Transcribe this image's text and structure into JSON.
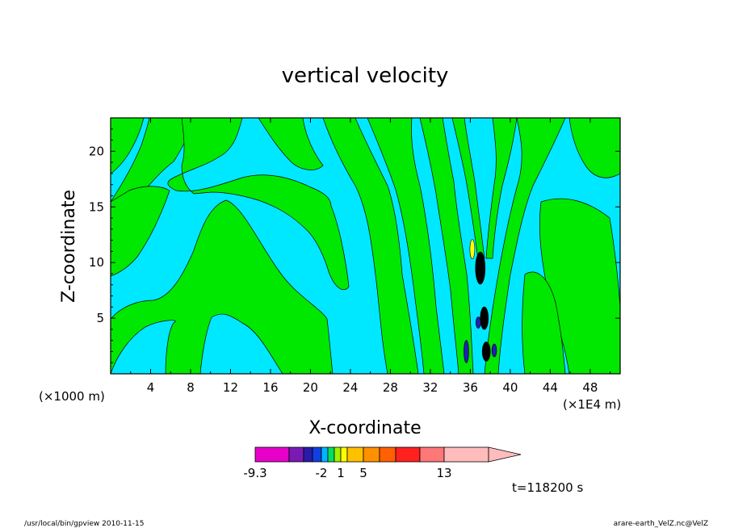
{
  "chart_data": {
    "type": "heatmap",
    "title": "vertical velocity",
    "xlabel": "X-coordinate",
    "ylabel": "Z-coordinate",
    "x_unit_left": "(×1000 m)",
    "x_unit_right": "(×1E4 m)",
    "xlim": [
      0,
      51
    ],
    "ylim": [
      0,
      23
    ],
    "xticks": [
      4,
      8,
      12,
      16,
      20,
      24,
      28,
      32,
      36,
      40,
      44,
      48
    ],
    "yticks": [
      5,
      10,
      15,
      20
    ],
    "time_label": "t=118200 s",
    "colorbar": {
      "tick_labels": [
        "-9.3",
        "-2",
        "1",
        "5",
        "13"
      ],
      "colors": [
        "#e600c8",
        "#7a1ab4",
        "#2a1aa8",
        "#1040e0",
        "#00b4ff",
        "#00e060",
        "#a0f000",
        "#ffff00",
        "#ffc000",
        "#ff9000",
        "#ff6000",
        "#ff2020",
        "#ff7878",
        "#ffbcbc"
      ]
    },
    "field_colors": {
      "background": "#00e8ff",
      "band": "#00e800",
      "strong_neg": "#2020b0",
      "strong_pos": "#ffff00"
    }
  },
  "footer": {
    "left": "/usr/local/bin/gpview  2010-11-15",
    "right": "arare-earth_VelZ.nc@VelZ"
  }
}
